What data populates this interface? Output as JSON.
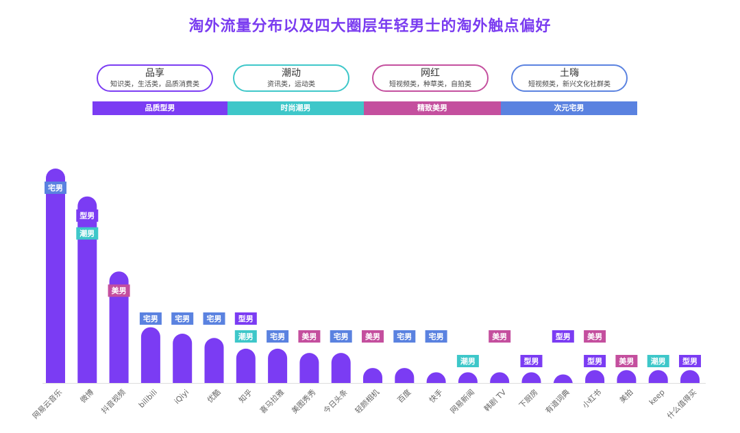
{
  "title": "淘外流量分布以及四大圈层年轻男士的淘外触点偏好",
  "colors": {
    "bar": "#7b3cf3",
    "title": "#7a3cf0",
    "pinzhi": "#7b3cf3",
    "chaonan": "#3ec7c9",
    "meinan": "#c44f9e",
    "zhainan": "#5a82e0",
    "axis": "#dcdcdc",
    "xlabel": "#666666"
  },
  "groups": [
    {
      "name": "品享",
      "desc": "知识类，生活类，品质消费类",
      "band": "品质型男",
      "color": "#7b3cf3"
    },
    {
      "name": "潮动",
      "desc": "资讯类，运动类",
      "band": "时尚潮男",
      "color": "#3ec7c9"
    },
    {
      "name": "网红",
      "desc": "短视频类，种草类，自拍类",
      "band": "精致美男",
      "color": "#c44f9e"
    },
    {
      "name": "土嗨",
      "desc": "短视频类，新兴文化社群类",
      "band": "次元宅男",
      "color": "#5a82e0"
    }
  ],
  "tag_colors": {
    "宅男": "#5a82e0",
    "型男": "#7b3cf3",
    "潮男": "#3ec7c9",
    "美男": "#c44f9e"
  },
  "chart_data": {
    "type": "bar",
    "title": "淘外流量分布以及四大圈层年轻男士的淘外触点偏好",
    "categories": [
      "网易云音乐",
      "微博",
      "抖音视频",
      "bilibili",
      "iQiyi",
      "优酷",
      "知乎",
      "喜马拉雅",
      "美图秀秀",
      "今日头条",
      "轻颜相机",
      "百度",
      "快手",
      "网易新闻",
      "韩剧 TV",
      "下厨房",
      "有道词典",
      "小红书",
      "美拍",
      "keep",
      "什么值得买"
    ],
    "values": [
      100,
      87,
      52,
      26,
      23,
      21,
      16,
      16,
      14,
      14,
      7,
      7,
      5,
      5,
      5,
      5,
      4,
      6,
      6,
      6,
      6
    ],
    "tags": [
      [
        "宅男"
      ],
      [
        "型男",
        "潮男"
      ],
      [
        "美男"
      ],
      [
        "宅男"
      ],
      [
        "宅男"
      ],
      [
        "宅男"
      ],
      [
        "型男",
        "潮男"
      ],
      [
        "宅男"
      ],
      [
        "美男"
      ],
      [
        "宅男"
      ],
      [
        "美男"
      ],
      [
        "宅男"
      ],
      [
        "宅男"
      ],
      [
        "潮男"
      ],
      [
        "美男"
      ],
      [
        "型男"
      ],
      [
        "型男"
      ],
      [
        "美男",
        "型男"
      ],
      [
        "美男"
      ],
      [
        "潮男"
      ],
      [
        "型男"
      ]
    ],
    "xlabel": "",
    "ylabel": "",
    "ylim": [
      0,
      100
    ],
    "grid": false
  }
}
